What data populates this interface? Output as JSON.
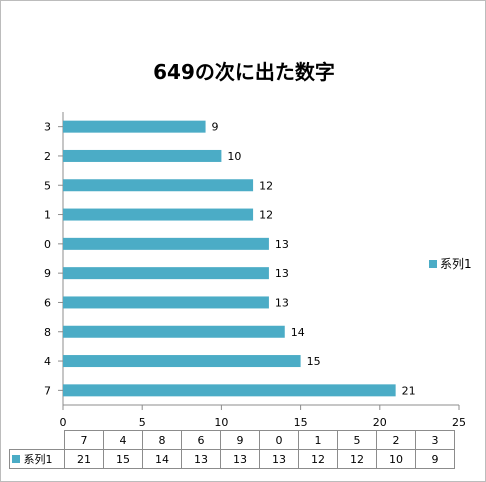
{
  "chart_data": {
    "type": "bar",
    "orientation": "horizontal",
    "title": "649の次に出た数字",
    "categories": [
      "7",
      "4",
      "8",
      "6",
      "9",
      "0",
      "1",
      "5",
      "2",
      "3"
    ],
    "series": [
      {
        "name": "系列1",
        "values": [
          21,
          15,
          14,
          13,
          13,
          13,
          12,
          12,
          10,
          9
        ]
      }
    ],
    "xlim": [
      0,
      25
    ],
    "xticks": [
      0,
      5,
      10,
      15,
      20,
      25
    ],
    "legend_position": "right",
    "data_table": true,
    "grid": false,
    "bar_color": "#4bacc6"
  }
}
